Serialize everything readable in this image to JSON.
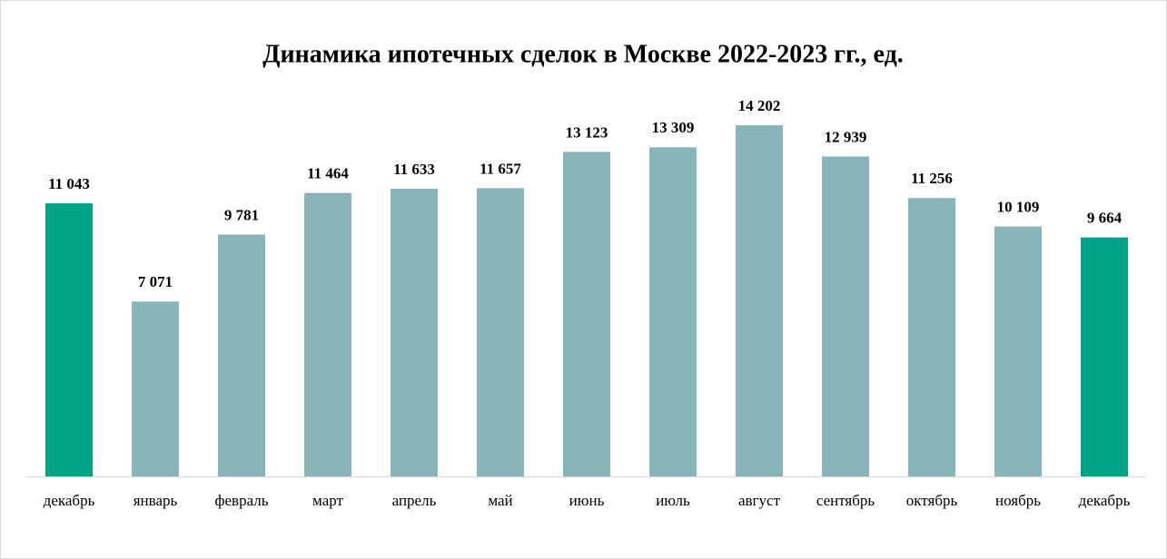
{
  "chart_data": {
    "type": "bar",
    "title": "Динамика ипотечных сделок в Москве 2022-2023 гг., ед.",
    "categories": [
      "декабрь",
      "январь",
      "февраль",
      "март",
      "апрель",
      "май",
      "июнь",
      "июль",
      "август",
      "сентябрь",
      "октябрь",
      "ноябрь",
      "декабрь"
    ],
    "values": [
      11043,
      7071,
      9781,
      11464,
      11633,
      11657,
      13123,
      13309,
      14202,
      12939,
      11256,
      10109,
      9664
    ],
    "value_labels": [
      "11 043",
      "7 071",
      "9 781",
      "11 464",
      "11 633",
      "11 657",
      "13 123",
      "13 309",
      "14 202",
      "12 939",
      "11 256",
      "10 109",
      "9 664"
    ],
    "colors": [
      "#00a386",
      "#87b5ba",
      "#87b5ba",
      "#87b5ba",
      "#87b5ba",
      "#87b5ba",
      "#87b5ba",
      "#87b5ba",
      "#87b5ba",
      "#87b5ba",
      "#87b5ba",
      "#87b5ba",
      "#00a386"
    ]
  }
}
